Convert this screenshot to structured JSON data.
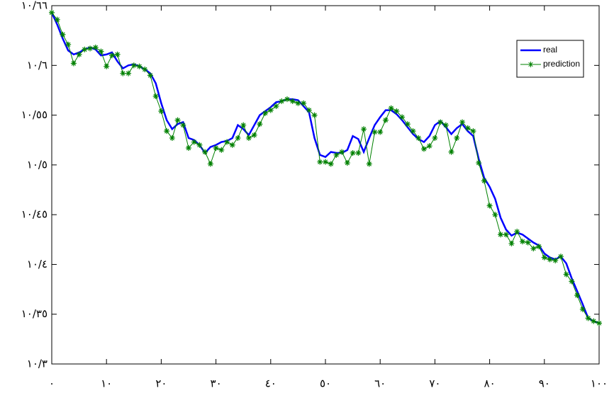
{
  "chart_data": {
    "type": "line",
    "x": [
      0,
      1,
      2,
      3,
      4,
      5,
      6,
      7,
      8,
      9,
      10,
      11,
      12,
      13,
      14,
      15,
      16,
      17,
      18,
      19,
      20,
      21,
      22,
      23,
      24,
      25,
      26,
      27,
      28,
      29,
      30,
      31,
      32,
      33,
      34,
      35,
      36,
      37,
      38,
      39,
      40,
      41,
      42,
      43,
      44,
      45,
      46,
      47,
      48,
      49,
      50,
      51,
      52,
      53,
      54,
      55,
      56,
      57,
      58,
      59,
      60,
      61,
      62,
      63,
      64,
      65,
      66,
      67,
      68,
      69,
      70,
      71,
      72,
      73,
      74,
      75,
      76,
      77,
      78,
      79,
      80,
      81,
      82,
      83,
      84,
      85,
      86,
      87,
      88,
      89,
      90,
      91,
      92,
      93,
      94,
      95,
      96,
      97,
      98,
      99,
      100
    ],
    "series": [
      {
        "name": "real",
        "color": "#0000ff",
        "values": [
          10.653,
          10.641,
          10.627,
          10.615,
          10.611,
          10.613,
          10.616,
          10.618,
          10.616,
          10.61,
          10.611,
          10.613,
          10.604,
          10.597,
          10.6,
          10.601,
          10.599,
          10.596,
          10.592,
          10.582,
          10.562,
          10.545,
          10.536,
          10.541,
          10.543,
          10.527,
          10.525,
          10.52,
          10.512,
          10.518,
          10.52,
          10.523,
          10.524,
          10.527,
          10.54,
          10.536,
          10.53,
          10.54,
          10.55,
          10.554,
          10.558,
          10.563,
          10.564,
          10.566,
          10.566,
          10.565,
          10.559,
          10.553,
          10.527,
          10.51,
          10.508,
          10.513,
          10.512,
          10.512,
          10.515,
          10.529,
          10.526,
          10.513,
          10.527,
          10.54,
          10.548,
          10.555,
          10.555,
          10.551,
          10.545,
          10.538,
          10.531,
          10.526,
          10.523,
          10.529,
          10.54,
          10.544,
          10.538,
          10.531,
          10.537,
          10.541,
          10.534,
          10.529,
          10.506,
          10.487,
          10.478,
          10.466,
          10.447,
          10.435,
          10.429,
          10.432,
          10.43,
          10.426,
          10.422,
          10.419,
          10.411,
          10.407,
          10.405,
          10.408,
          10.401,
          10.386,
          10.373,
          10.36,
          10.346,
          10.343,
          10.341
        ]
      },
      {
        "name": "prediction",
        "color": "#008000",
        "marker": "*",
        "values": [
          10.653,
          10.646,
          10.631,
          10.621,
          10.602,
          10.611,
          10.616,
          10.617,
          10.618,
          10.614,
          10.599,
          10.61,
          10.611,
          10.592,
          10.592,
          10.6,
          10.599,
          10.596,
          10.59,
          10.569,
          10.554,
          10.534,
          10.527,
          10.545,
          10.54,
          10.517,
          10.523,
          10.52,
          10.513,
          10.501,
          10.517,
          10.515,
          10.523,
          10.52,
          10.527,
          10.54,
          10.527,
          10.53,
          10.541,
          10.552,
          10.555,
          10.559,
          10.564,
          10.566,
          10.564,
          10.562,
          10.562,
          10.555,
          10.55,
          10.503,
          10.503,
          10.501,
          10.51,
          10.513,
          10.502,
          10.512,
          10.512,
          10.536,
          10.501,
          10.533,
          10.533,
          10.545,
          10.557,
          10.554,
          10.548,
          10.541,
          10.534,
          10.527,
          10.516,
          10.519,
          10.527,
          10.543,
          10.54,
          10.513,
          10.527,
          10.543,
          10.537,
          10.534,
          10.502,
          10.484,
          10.459,
          10.45,
          10.43,
          10.43,
          10.421,
          10.433,
          10.423,
          10.422,
          10.416,
          10.418,
          10.407,
          10.405,
          10.404,
          10.408,
          10.39,
          10.383,
          10.369,
          10.355,
          10.346,
          10.343,
          10.341
        ]
      }
    ],
    "xlim": [
      0,
      100
    ],
    "xticks": [
      {
        "value": 0,
        "label": "٠"
      },
      {
        "value": 10,
        "label": "١٠"
      },
      {
        "value": 20,
        "label": "٢٠"
      },
      {
        "value": 30,
        "label": "٣٠"
      },
      {
        "value": 40,
        "label": "٤٠"
      },
      {
        "value": 50,
        "label": "٥٠"
      },
      {
        "value": 60,
        "label": "٦٠"
      },
      {
        "value": 70,
        "label": "٧٠"
      },
      {
        "value": 80,
        "label": "٨٠"
      },
      {
        "value": 90,
        "label": "٩٠"
      },
      {
        "value": 100,
        "label": "١٠٠"
      }
    ],
    "ylim": [
      10.3,
      10.66
    ],
    "yticks": [
      {
        "value": 10.3,
        "label": "١٠/٣"
      },
      {
        "value": 10.35,
        "label": "١٠/٣٥"
      },
      {
        "value": 10.4,
        "label": "١٠/٤"
      },
      {
        "value": 10.45,
        "label": "١٠/٤٥"
      },
      {
        "value": 10.5,
        "label": "١٠/٥"
      },
      {
        "value": 10.55,
        "label": "١٠/٥٥"
      },
      {
        "value": 10.6,
        "label": "١٠/٦"
      },
      {
        "value": 10.66,
        "label": "١٠/٦٦"
      }
    ],
    "grid": false,
    "legend": "upper right"
  }
}
